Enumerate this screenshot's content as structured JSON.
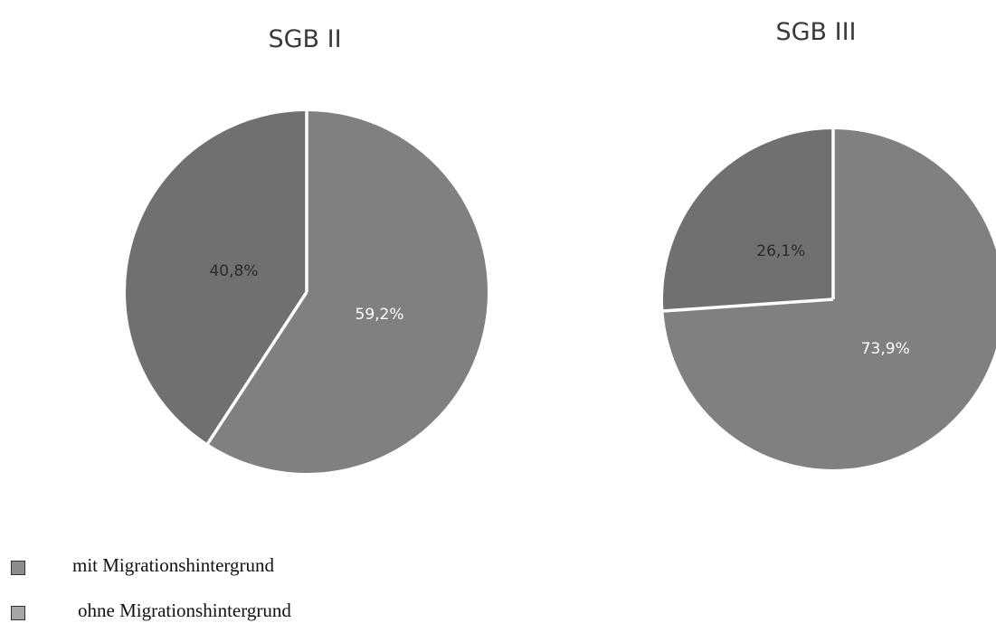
{
  "chart_data": [
    {
      "type": "pie",
      "title": "SGB II",
      "start_angle_deg": 0,
      "direction": "clockwise",
      "slices": [
        {
          "label": "ohne Migrationshintergrund",
          "value": 59.2,
          "display": "59,2%",
          "color": "#808080",
          "label_color": "#ffffff"
        },
        {
          "label": "mit Migrationshintergrund",
          "value": 40.8,
          "display": "40,8%",
          "color": "#707070",
          "label_color": "#2b2b2b"
        }
      ]
    },
    {
      "type": "pie",
      "title": "SGB III",
      "start_angle_deg": 0,
      "direction": "clockwise",
      "slices": [
        {
          "label": "ohne Migrationshintergrund",
          "value": 73.9,
          "display": "73,9%",
          "color": "#808080",
          "label_color": "#ffffff"
        },
        {
          "label": "mit Migrationshintergrund",
          "value": 26.1,
          "display": "26,1%",
          "color": "#707070",
          "label_color": "#2b2b2b"
        }
      ]
    }
  ],
  "legend": {
    "placement": "bottom-left",
    "items": [
      {
        "label": "mit Migrationshintergrund",
        "color": "#8c8c8c"
      },
      {
        "label": "ohne Migrationshintergrund",
        "color": "#a6a6a6"
      }
    ]
  }
}
